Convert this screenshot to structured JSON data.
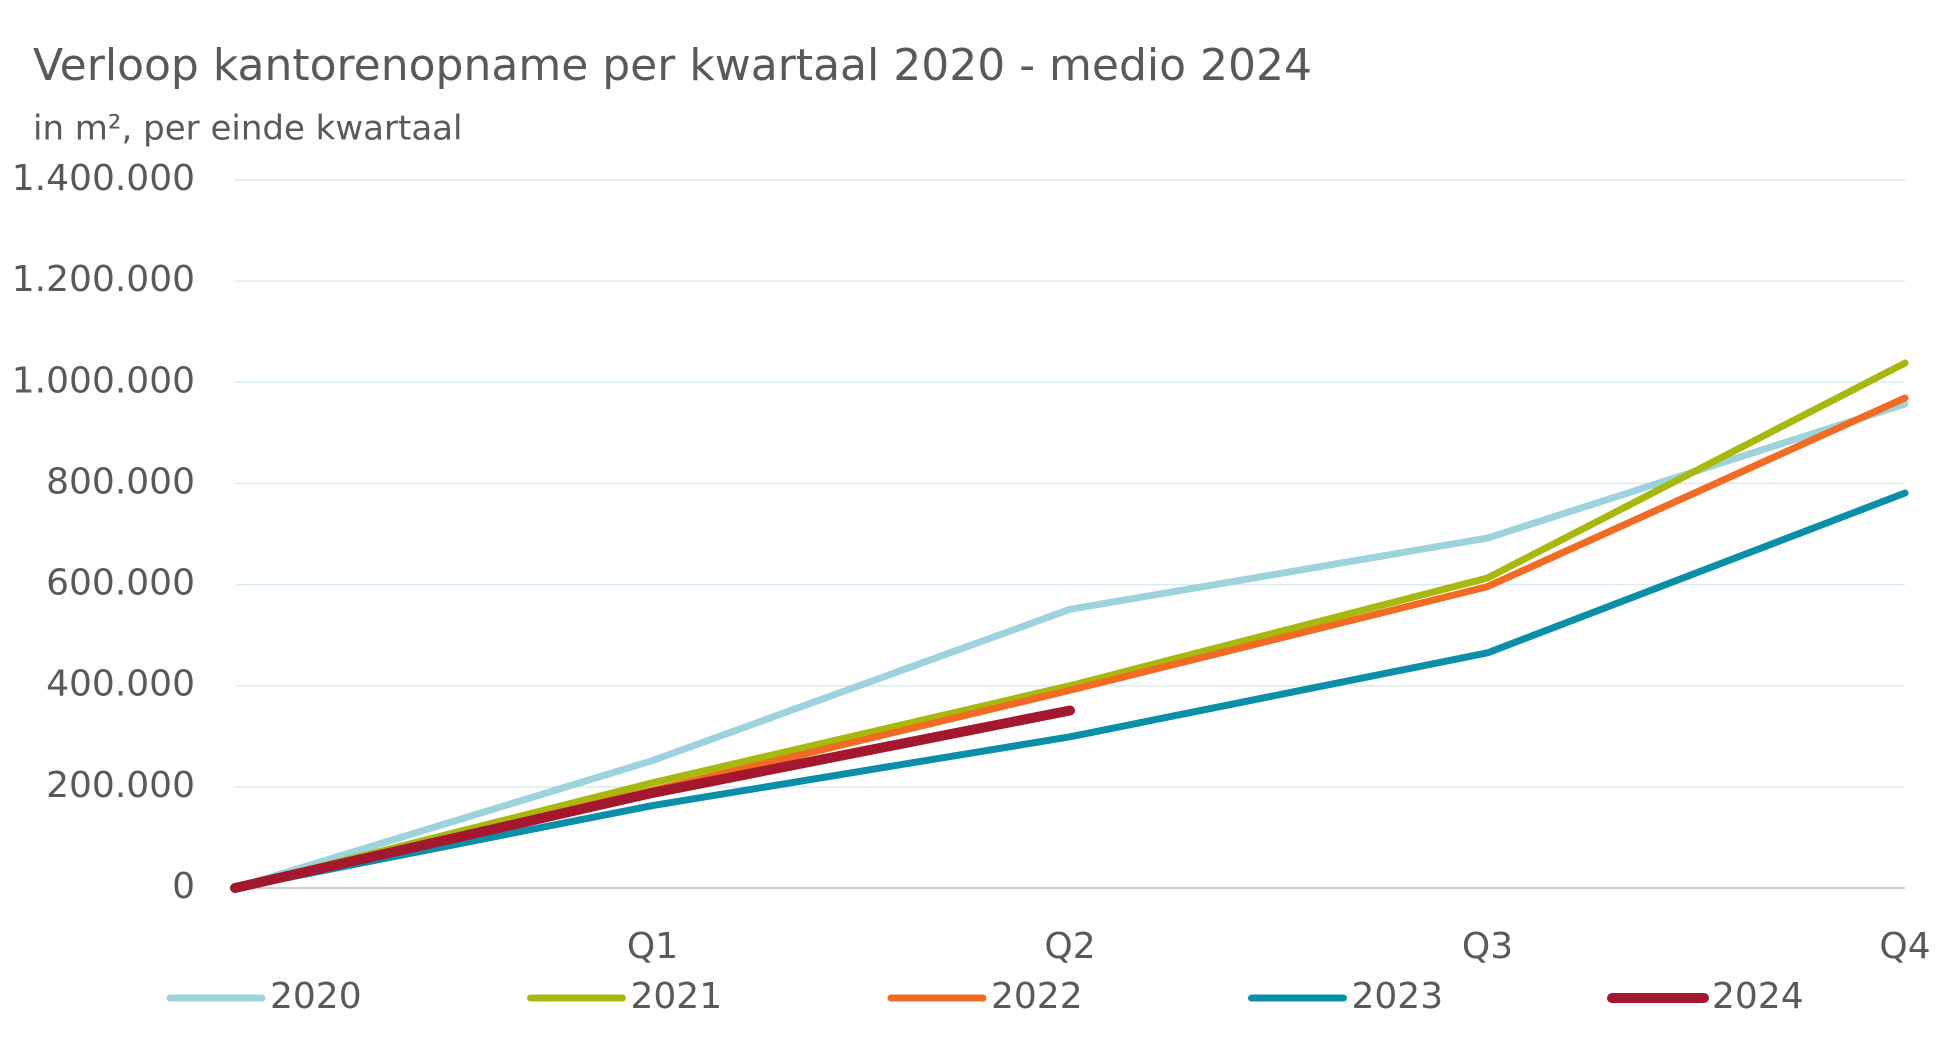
{
  "chart_data": {
    "type": "line",
    "title": "Verloop kantorenopname per kwartaal 2020 - medio 2024",
    "subtitle": "in m², per einde kwartaal",
    "categories": [
      null,
      "Q1",
      "Q2",
      "Q3",
      "Q4"
    ],
    "series": [
      {
        "name": "2020",
        "color": "#9dd3dc",
        "values": [
          0,
          252000,
          551000,
          692000,
          957000
        ]
      },
      {
        "name": "2021",
        "color": "#a9b80c",
        "values": [
          0,
          208000,
          400000,
          613000,
          1038000
        ]
      },
      {
        "name": "2022",
        "color": "#f36b23",
        "values": [
          0,
          193000,
          391000,
          596000,
          969000
        ]
      },
      {
        "name": "2023",
        "color": "#0a8fa8",
        "values": [
          0,
          163000,
          299000,
          465000,
          781000
        ]
      },
      {
        "name": "2024",
        "color": "#a3172f",
        "values": [
          0,
          188000,
          351000,
          null,
          null
        ]
      }
    ],
    "ylim": [
      0,
      1400000
    ],
    "yticks": [
      0,
      {
        "value": 200000,
        "label": "200.000"
      },
      {
        "value": 400000,
        "label": "400.000"
      },
      {
        "value": 600000,
        "label": "600.000"
      },
      {
        "value": 800000,
        "label": "800.000"
      },
      {
        "value": 1000000,
        "label": "1.000.000"
      },
      {
        "value": 1200000,
        "label": "1.200.000"
      },
      {
        "value": 1400000,
        "label": "1.400.000"
      }
    ],
    "grid": true,
    "legend": "bottom"
  }
}
